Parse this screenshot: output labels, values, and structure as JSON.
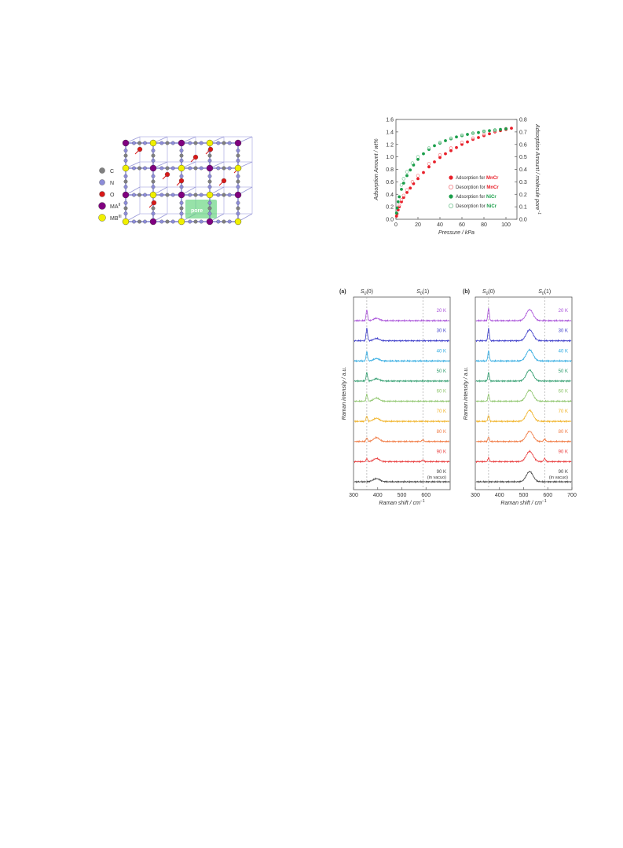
{
  "crystal_figure": {
    "legend": [
      {
        "label": "C",
        "color": "#808080"
      },
      {
        "label": "N",
        "color": "#8c8cd8"
      },
      {
        "label": "O",
        "color": "#d81818"
      },
      {
        "label": "MA",
        "sup": "II",
        "color": "#800080"
      },
      {
        "label": "MB",
        "sup": "III",
        "color": "#f0f000"
      }
    ],
    "pore_label": "pore",
    "colors": {
      "C": "#808080",
      "N": "#8c8cd8",
      "O": "#d81818",
      "MA": "#800080",
      "MB": "#f0f000",
      "pore": "#5fd27a"
    }
  },
  "chart_data": [
    {
      "type": "scatter",
      "xlabel": "Pressure / kPa",
      "ylabel": "Adsorption Amount / wt%",
      "ylabel_right": "Adsorption Amount / molecule pore",
      "ylabel_right_sup": "−1",
      "xlim": [
        0,
        110
      ],
      "ylim": [
        0,
        1.6
      ],
      "ylim_right": [
        0,
        0.8
      ],
      "xticks": [
        0,
        20,
        40,
        60,
        80,
        100
      ],
      "yticks": [
        0.0,
        0.2,
        0.4,
        0.6,
        0.8,
        1.0,
        1.2,
        1.4,
        1.6
      ],
      "yticks_right": [
        0.0,
        0.1,
        0.2,
        0.3,
        0.4,
        0.5,
        0.6,
        0.7,
        0.8
      ],
      "legend_position": "bottom-right",
      "series": [
        {
          "name_prefix": "Adsorption for ",
          "name_bold": "MnCr",
          "color": "#e8202a",
          "filled": true,
          "x": [
            0.5,
            1,
            2,
            3,
            5,
            7,
            10,
            13,
            16,
            20,
            25,
            30,
            35,
            40,
            45,
            50,
            55,
            60,
            65,
            70,
            75,
            80,
            85,
            90,
            95,
            100,
            105
          ],
          "y": [
            0.05,
            0.09,
            0.15,
            0.2,
            0.28,
            0.35,
            0.43,
            0.5,
            0.57,
            0.65,
            0.75,
            0.84,
            0.92,
            0.99,
            1.05,
            1.1,
            1.15,
            1.2,
            1.24,
            1.28,
            1.31,
            1.34,
            1.37,
            1.4,
            1.42,
            1.44,
            1.46
          ]
        },
        {
          "name_prefix": "Desorption for ",
          "name_bold": "MnCr",
          "color": "#e8202a",
          "filled": false,
          "x": [
            100,
            90,
            80,
            70,
            60,
            50,
            40,
            30,
            20,
            15,
            10,
            7,
            5,
            3
          ],
          "y": [
            1.45,
            1.41,
            1.36,
            1.3,
            1.23,
            1.14,
            1.03,
            0.89,
            0.7,
            0.6,
            0.47,
            0.38,
            0.31,
            0.22
          ]
        },
        {
          "name_prefix": "Adsorption for ",
          "name_bold": "NiCr",
          "color": "#1a9e4a",
          "filled": true,
          "x": [
            0.5,
            1,
            2,
            3,
            5,
            7,
            10,
            13,
            16,
            20,
            25,
            30,
            35,
            40,
            45,
            50,
            55,
            60,
            65,
            70,
            75,
            80,
            85,
            90,
            95,
            100
          ],
          "y": [
            0.1,
            0.18,
            0.28,
            0.36,
            0.48,
            0.58,
            0.7,
            0.79,
            0.87,
            0.96,
            1.05,
            1.12,
            1.18,
            1.22,
            1.26,
            1.29,
            1.32,
            1.34,
            1.36,
            1.38,
            1.39,
            1.41,
            1.42,
            1.43,
            1.44,
            1.45
          ]
        },
        {
          "name_prefix": "Desorption for ",
          "name_bold": "NiCr",
          "color": "#1a9e4a",
          "filled": false,
          "x": [
            90,
            80,
            70,
            60,
            50,
            40,
            30,
            20,
            15,
            10,
            7,
            5
          ],
          "y": [
            1.43,
            1.41,
            1.38,
            1.35,
            1.3,
            1.23,
            1.14,
            1.0,
            0.9,
            0.76,
            0.65,
            0.55
          ]
        }
      ]
    },
    {
      "type": "line",
      "panel_label": "(a)",
      "xlabel": "Raman shift / cm",
      "xlabel_sup": "−1",
      "ylabel": "Raman intensity / a.u.",
      "xlim": [
        300,
        700
      ],
      "xticks": [
        300,
        400,
        500,
        600
      ],
      "peak_labels": [
        {
          "text": "S",
          "sub": "0",
          "paren": "(0)",
          "x": 355
        },
        {
          "text": "S",
          "sub": "0",
          "paren": "(1)",
          "x": 587
        }
      ],
      "series": [
        {
          "name": "20 K",
          "color": "#a64dd8",
          "peaks": [
            {
              "center": 355,
              "height": 14,
              "width": 3
            },
            {
              "center": 395,
              "height": 3,
              "width": 12
            }
          ]
        },
        {
          "name": "30 K",
          "color": "#3838c8",
          "peaks": [
            {
              "center": 355,
              "height": 16,
              "width": 3
            },
            {
              "center": 395,
              "height": 3,
              "width": 12
            }
          ]
        },
        {
          "name": "40 K",
          "color": "#2aa8e0",
          "peaks": [
            {
              "center": 355,
              "height": 12,
              "width": 3
            },
            {
              "center": 395,
              "height": 3,
              "width": 12
            }
          ]
        },
        {
          "name": "50 K",
          "color": "#2a9a6a",
          "peaks": [
            {
              "center": 355,
              "height": 11,
              "width": 3
            },
            {
              "center": 395,
              "height": 3,
              "width": 12
            }
          ]
        },
        {
          "name": "60 K",
          "color": "#8cc46a",
          "peaks": [
            {
              "center": 355,
              "height": 9,
              "width": 3
            },
            {
              "center": 395,
              "height": 4,
              "width": 12
            }
          ]
        },
        {
          "name": "70 K",
          "color": "#f0b020",
          "peaks": [
            {
              "center": 355,
              "height": 7,
              "width": 3
            },
            {
              "center": 395,
              "height": 4,
              "width": 12
            }
          ]
        },
        {
          "name": "80 K",
          "color": "#f07840",
          "peaks": [
            {
              "center": 355,
              "height": 5,
              "width": 3
            },
            {
              "center": 395,
              "height": 5,
              "width": 12
            },
            {
              "center": 587,
              "height": 2,
              "width": 4
            }
          ]
        },
        {
          "name": "90 K",
          "color": "#e83838",
          "peaks": [
            {
              "center": 355,
              "height": 4,
              "width": 3
            },
            {
              "center": 395,
              "height": 4,
              "width": 12
            },
            {
              "center": 587,
              "height": 2,
              "width": 4
            }
          ]
        },
        {
          "name": "90 K",
          "name_note": "(in vacuo)",
          "color": "#404040",
          "peaks": [
            {
              "center": 395,
              "height": 4,
              "width": 14
            }
          ]
        }
      ]
    },
    {
      "type": "line",
      "panel_label": "(b)",
      "xlabel": "Raman shift / cm",
      "xlabel_sup": "−1",
      "ylabel": "Raman intensity / a.u.",
      "xlim": [
        300,
        700
      ],
      "xticks": [
        300,
        400,
        500,
        600,
        700
      ],
      "peak_labels": [
        {
          "text": "S",
          "sub": "0",
          "paren": "(0)",
          "x": 355
        },
        {
          "text": "S",
          "sub": "0",
          "paren": "(1)",
          "x": 587
        }
      ],
      "series": [
        {
          "name": "20 K",
          "color": "#a64dd8",
          "peaks": [
            {
              "center": 355,
              "height": 16,
              "width": 3
            },
            {
              "center": 525,
              "height": 14,
              "width": 14
            }
          ]
        },
        {
          "name": "30 K",
          "color": "#3838c8",
          "peaks": [
            {
              "center": 355,
              "height": 16,
              "width": 3
            },
            {
              "center": 525,
              "height": 14,
              "width": 14
            }
          ]
        },
        {
          "name": "40 K",
          "color": "#2aa8e0",
          "peaks": [
            {
              "center": 355,
              "height": 13,
              "width": 3
            },
            {
              "center": 525,
              "height": 14,
              "width": 14
            }
          ]
        },
        {
          "name": "50 K",
          "color": "#2a9a6a",
          "peaks": [
            {
              "center": 355,
              "height": 11,
              "width": 3
            },
            {
              "center": 525,
              "height": 14,
              "width": 14
            }
          ]
        },
        {
          "name": "60 K",
          "color": "#8cc46a",
          "peaks": [
            {
              "center": 355,
              "height": 9,
              "width": 3
            },
            {
              "center": 525,
              "height": 14,
              "width": 14
            }
          ]
        },
        {
          "name": "70 K",
          "color": "#f0b020",
          "peaks": [
            {
              "center": 355,
              "height": 8,
              "width": 3
            },
            {
              "center": 525,
              "height": 14,
              "width": 14
            }
          ]
        },
        {
          "name": "80 K",
          "color": "#f07840",
          "peaks": [
            {
              "center": 355,
              "height": 6,
              "width": 3
            },
            {
              "center": 525,
              "height": 13,
              "width": 14
            },
            {
              "center": 587,
              "height": 3,
              "width": 4
            }
          ]
        },
        {
          "name": "90 K",
          "color": "#e83838",
          "peaks": [
            {
              "center": 355,
              "height": 5,
              "width": 3
            },
            {
              "center": 525,
              "height": 13,
              "width": 14
            },
            {
              "center": 587,
              "height": 4,
              "width": 4
            }
          ]
        },
        {
          "name": "90 K",
          "name_note": "(in vacuo)",
          "color": "#404040",
          "peaks": [
            {
              "center": 525,
              "height": 13,
              "width": 14
            }
          ]
        }
      ]
    }
  ]
}
